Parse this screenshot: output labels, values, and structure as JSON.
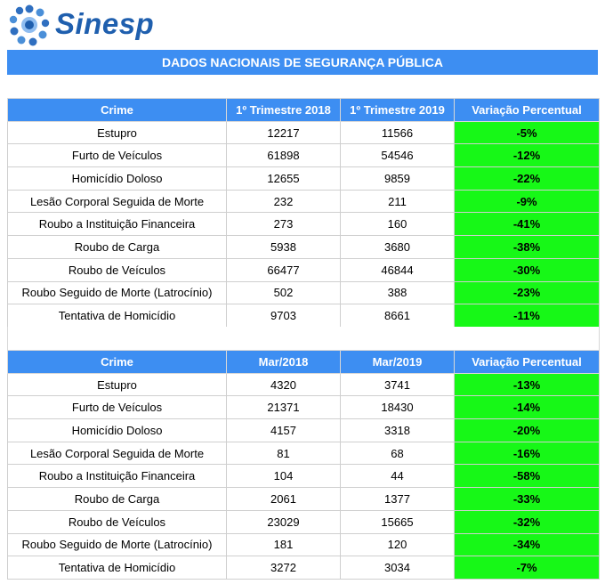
{
  "header": {
    "logo_text": "Sinesp",
    "banner_title": "DADOS NACIONAIS DE SEGURANÇA PÚBLICA"
  },
  "table1": {
    "headers": [
      "Crime",
      "1º  Trimestre 2018",
      "1º  Trimestre 2019",
      "Variação Percentual"
    ],
    "rows": [
      {
        "crime": "Estupro",
        "a": "12217",
        "b": "11566",
        "pct": "-5%"
      },
      {
        "crime": "Furto de Veículos",
        "a": "61898",
        "b": "54546",
        "pct": "-12%"
      },
      {
        "crime": "Homicídio Doloso",
        "a": "12655",
        "b": "9859",
        "pct": "-22%"
      },
      {
        "crime": "Lesão Corporal Seguida de Morte",
        "a": "232",
        "b": "211",
        "pct": "-9%"
      },
      {
        "crime": "Roubo a Instituição Financeira",
        "a": "273",
        "b": "160",
        "pct": "-41%"
      },
      {
        "crime": "Roubo de Carga",
        "a": "5938",
        "b": "3680",
        "pct": "-38%"
      },
      {
        "crime": "Roubo de Veículos",
        "a": "66477",
        "b": "46844",
        "pct": "-30%"
      },
      {
        "crime": "Roubo Seguido de Morte (Latrocínio)",
        "a": "502",
        "b": "388",
        "pct": "-23%"
      },
      {
        "crime": "Tentativa de Homicídio",
        "a": "9703",
        "b": "8661",
        "pct": "-11%"
      }
    ]
  },
  "table2": {
    "headers": [
      "Crime",
      "Mar/2018",
      "Mar/2019",
      "Variação Percentual"
    ],
    "rows": [
      {
        "crime": "Estupro",
        "a": "4320",
        "b": "3741",
        "pct": "-13%"
      },
      {
        "crime": "Furto de Veículos",
        "a": "21371",
        "b": "18430",
        "pct": "-14%"
      },
      {
        "crime": "Homicídio Doloso",
        "a": "4157",
        "b": "3318",
        "pct": "-20%"
      },
      {
        "crime": "Lesão Corporal Seguida de Morte",
        "a": "81",
        "b": "68",
        "pct": "-16%"
      },
      {
        "crime": "Roubo a Instituição Financeira",
        "a": "104",
        "b": "44",
        "pct": "-58%"
      },
      {
        "crime": "Roubo de Carga",
        "a": "2061",
        "b": "1377",
        "pct": "-33%"
      },
      {
        "crime": "Roubo de Veículos",
        "a": "23029",
        "b": "15665",
        "pct": "-32%"
      },
      {
        "crime": "Roubo Seguido de Morte (Latrocínio)",
        "a": "181",
        "b": "120",
        "pct": "-34%"
      },
      {
        "crime": "Tentativa de Homicídio",
        "a": "3272",
        "b": "3034",
        "pct": "-7%"
      }
    ]
  },
  "colors": {
    "header_blue": "#3d8ef2",
    "reduction_green": "#17f817",
    "logo_blue": "#1f5fae"
  }
}
